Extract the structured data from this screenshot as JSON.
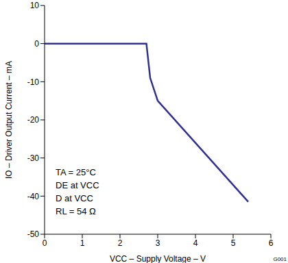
{
  "chart_data": {
    "type": "line",
    "x_label": "VCC – Supply Voltage – V",
    "y_label": "IO – Driver Output Current – mA",
    "annotations": [
      "TA = 25°C",
      "DE at VCC",
      "D at VCC",
      "RL = 54 Ω"
    ],
    "footnote": "G001",
    "x": [
      0,
      2.7,
      2.8,
      3.0,
      5.4
    ],
    "values": [
      0,
      0,
      -9,
      -15,
      -41.5
    ],
    "color": "#2e3192",
    "xlim": [
      0,
      6
    ],
    "xticks": [
      0,
      1,
      2,
      3,
      4,
      5,
      6
    ],
    "ylim": [
      -50,
      10
    ],
    "yticks": [
      -50,
      -40,
      -30,
      -20,
      -10,
      0,
      10
    ],
    "grid": false
  }
}
